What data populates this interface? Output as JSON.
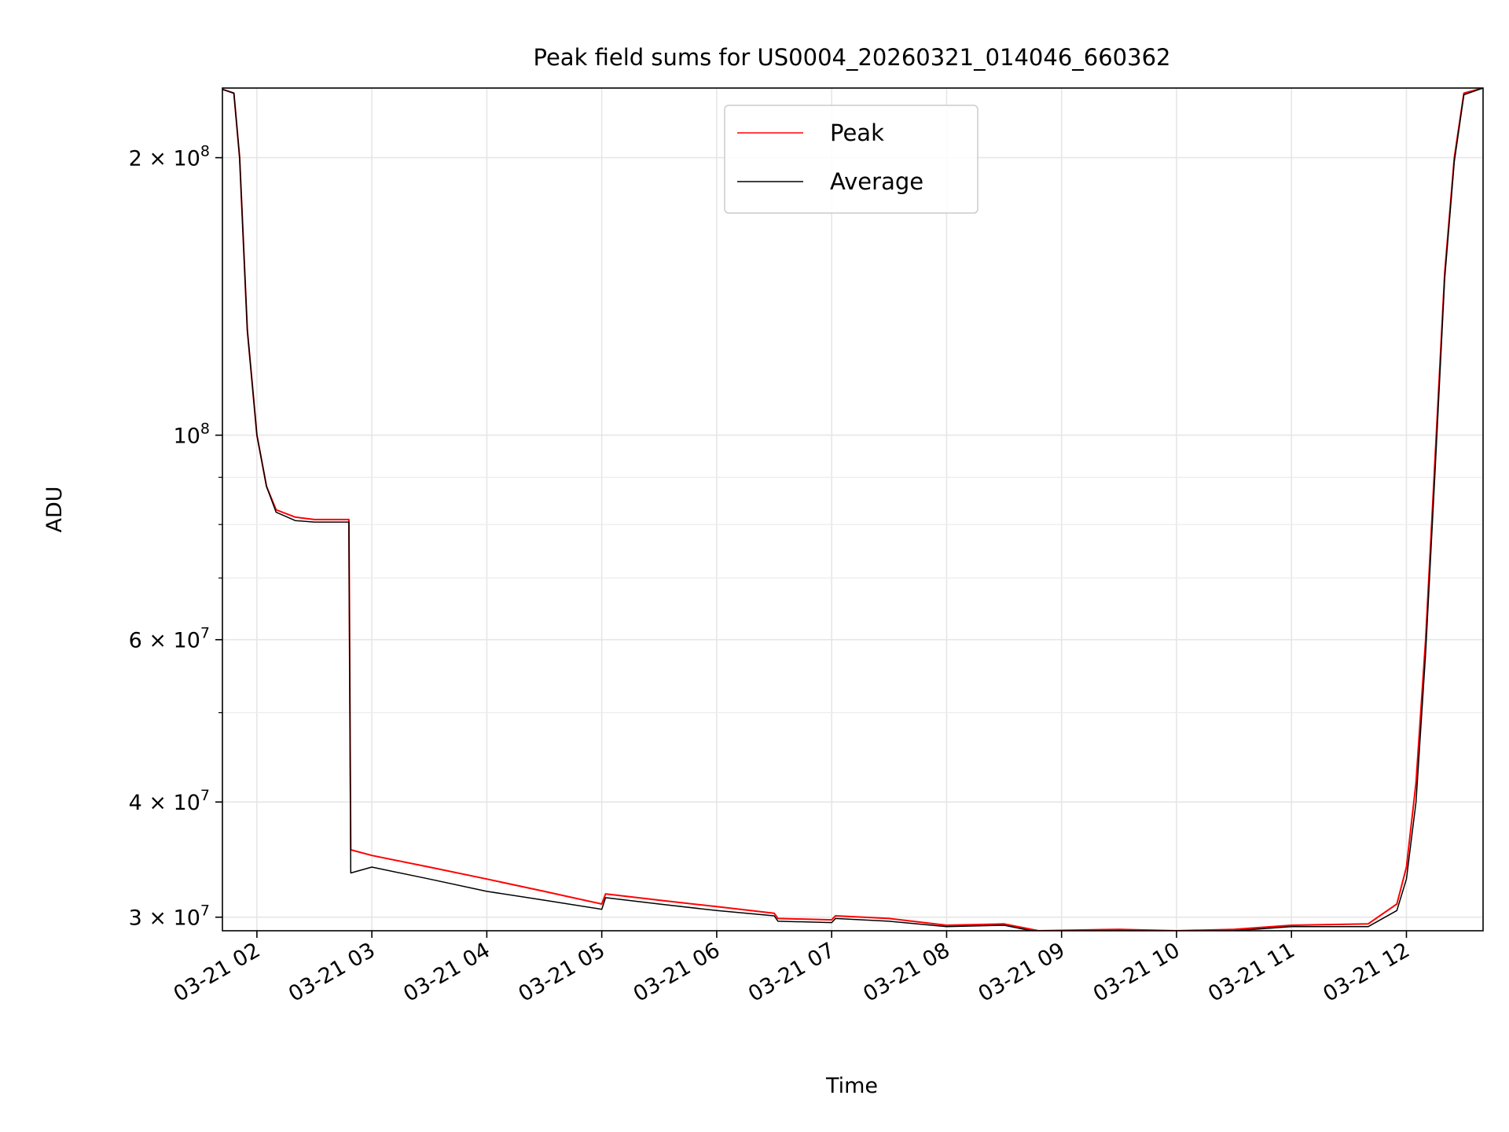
{
  "chart_data": {
    "type": "line",
    "title": "Peak field sums for US0004_20260321_014046_660362",
    "xlabel": "Time",
    "ylabel": "ADU",
    "yscale": "log",
    "grid": true,
    "legend_position": "top-center",
    "xlim": [
      "03-21 01:42",
      "03-21 12:40"
    ],
    "ylim": [
      29000000,
      238000000
    ],
    "x_ticks": [
      "03-21 02",
      "03-21 03",
      "03-21 04",
      "03-21 05",
      "03-21 06",
      "03-21 07",
      "03-21 08",
      "03-21 09",
      "03-21 10",
      "03-21 11",
      "03-21 12"
    ],
    "y_ticks": [
      {
        "value": 30000000,
        "mantissa": "3",
        "base": "10",
        "exp": "7"
      },
      {
        "value": 40000000,
        "mantissa": "4",
        "base": "10",
        "exp": "7"
      },
      {
        "value": 60000000,
        "mantissa": "6",
        "base": "10",
        "exp": "7"
      },
      {
        "value": 100000000,
        "mantissa": "",
        "base": "10",
        "exp": "8"
      },
      {
        "value": 200000000,
        "mantissa": "2",
        "base": "10",
        "exp": "8"
      }
    ],
    "y_minor_ticks": [
      50000000,
      70000000,
      80000000,
      90000000
    ],
    "series": [
      {
        "name": "Peak",
        "color": "#ff0000",
        "points": [
          [
            "03-21 01:40",
            238000000
          ],
          [
            "03-21 01:48",
            235000000
          ],
          [
            "03-21 01:51",
            200000000
          ],
          [
            "03-21 01:55",
            130000000
          ],
          [
            "03-21 02:00",
            100000000
          ],
          [
            "03-21 02:05",
            88000000
          ],
          [
            "03-21 02:10",
            83000000
          ],
          [
            "03-21 02:20",
            81500000
          ],
          [
            "03-21 02:30",
            81000000
          ],
          [
            "03-21 02:48",
            81000000
          ],
          [
            "03-21 02:49",
            35500000
          ],
          [
            "03-21 03:00",
            35000000
          ],
          [
            "03-21 03:30",
            34000000
          ],
          [
            "03-21 04:00",
            33000000
          ],
          [
            "03-21 04:30",
            32000000
          ],
          [
            "03-21 05:00",
            31000000
          ],
          [
            "03-21 05:02",
            31800000
          ],
          [
            "03-21 05:30",
            31300000
          ],
          [
            "03-21 06:00",
            30800000
          ],
          [
            "03-21 06:30",
            30300000
          ],
          [
            "03-21 06:32",
            29900000
          ],
          [
            "03-21 07:00",
            29800000
          ],
          [
            "03-21 07:02",
            30100000
          ],
          [
            "03-21 07:30",
            29900000
          ],
          [
            "03-21 08:00",
            29400000
          ],
          [
            "03-21 08:30",
            29500000
          ],
          [
            "03-21 08:48",
            29000000
          ],
          [
            "03-21 09:30",
            29100000
          ],
          [
            "03-21 10:00",
            29000000
          ],
          [
            "03-21 10:30",
            29100000
          ],
          [
            "03-21 11:00",
            29400000
          ],
          [
            "03-21 11:40",
            29500000
          ],
          [
            "03-21 11:55",
            31000000
          ],
          [
            "03-21 12:00",
            34000000
          ],
          [
            "03-21 12:05",
            42000000
          ],
          [
            "03-21 12:10",
            60000000
          ],
          [
            "03-21 12:15",
            95000000
          ],
          [
            "03-21 12:20",
            150000000
          ],
          [
            "03-21 12:25",
            200000000
          ],
          [
            "03-21 12:30",
            235000000
          ],
          [
            "03-21 12:40",
            238000000
          ]
        ]
      },
      {
        "name": "Average",
        "color": "#000000",
        "points": [
          [
            "03-21 01:40",
            238000000
          ],
          [
            "03-21 01:48",
            235000000
          ],
          [
            "03-21 01:51",
            200000000
          ],
          [
            "03-21 01:55",
            130000000
          ],
          [
            "03-21 02:00",
            100000000
          ],
          [
            "03-21 02:05",
            88000000
          ],
          [
            "03-21 02:10",
            82500000
          ],
          [
            "03-21 02:20",
            80800000
          ],
          [
            "03-21 02:30",
            80500000
          ],
          [
            "03-21 02:48",
            80500000
          ],
          [
            "03-21 02:49",
            33500000
          ],
          [
            "03-21 03:00",
            34000000
          ],
          [
            "03-21 03:30",
            33000000
          ],
          [
            "03-21 04:00",
            32000000
          ],
          [
            "03-21 04:30",
            31300000
          ],
          [
            "03-21 05:00",
            30600000
          ],
          [
            "03-21 05:02",
            31500000
          ],
          [
            "03-21 05:30",
            31000000
          ],
          [
            "03-21 06:00",
            30500000
          ],
          [
            "03-21 06:30",
            30100000
          ],
          [
            "03-21 06:32",
            29700000
          ],
          [
            "03-21 07:00",
            29600000
          ],
          [
            "03-21 07:02",
            29900000
          ],
          [
            "03-21 07:30",
            29700000
          ],
          [
            "03-21 08:00",
            29300000
          ],
          [
            "03-21 08:30",
            29400000
          ],
          [
            "03-21 08:48",
            28900000
          ],
          [
            "03-21 09:30",
            29000000
          ],
          [
            "03-21 10:00",
            28900000
          ],
          [
            "03-21 10:30",
            29000000
          ],
          [
            "03-21 11:00",
            29300000
          ],
          [
            "03-21 11:40",
            29300000
          ],
          [
            "03-21 11:55",
            30500000
          ],
          [
            "03-21 12:00",
            33000000
          ],
          [
            "03-21 12:05",
            40000000
          ],
          [
            "03-21 12:10",
            58000000
          ],
          [
            "03-21 12:15",
            92000000
          ],
          [
            "03-21 12:20",
            148000000
          ],
          [
            "03-21 12:25",
            198000000
          ],
          [
            "03-21 12:30",
            234000000
          ],
          [
            "03-21 12:40",
            238000000
          ]
        ]
      }
    ]
  }
}
